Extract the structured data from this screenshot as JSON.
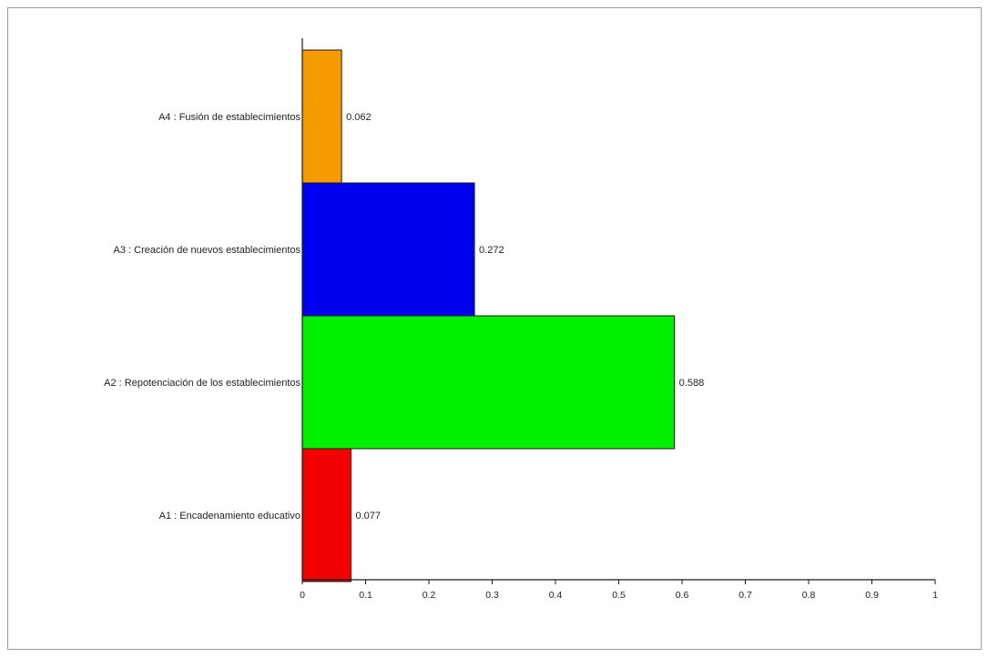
{
  "chart_data": {
    "type": "bar",
    "orientation": "horizontal",
    "categories": [
      "A4 : Fusión de establecimientos",
      "A3 : Creación de nuevos establecimientos",
      "A2 : Repotenciación de los establecimientos",
      "A1 : Encadenamiento educativo"
    ],
    "values": [
      0.062,
      0.272,
      0.588,
      0.077
    ],
    "value_labels": [
      "0.062",
      "0.272",
      "0.588",
      "0.077"
    ],
    "colors": [
      "#f59a00",
      "#0000f0",
      "#00f000",
      "#f00000"
    ],
    "xlim": [
      0,
      1
    ],
    "x_ticks": [
      0,
      0.1,
      0.2,
      0.3,
      0.4,
      0.5,
      0.6,
      0.7,
      0.8,
      0.9,
      1
    ],
    "x_tick_labels": [
      "0",
      "0.1",
      "0.2",
      "0.3",
      "0.4",
      "0.5",
      "0.6",
      "0.7",
      "0.8",
      "0.9",
      "1"
    ],
    "title": "",
    "xlabel": "",
    "ylabel": "",
    "grid": false,
    "legend": false
  }
}
